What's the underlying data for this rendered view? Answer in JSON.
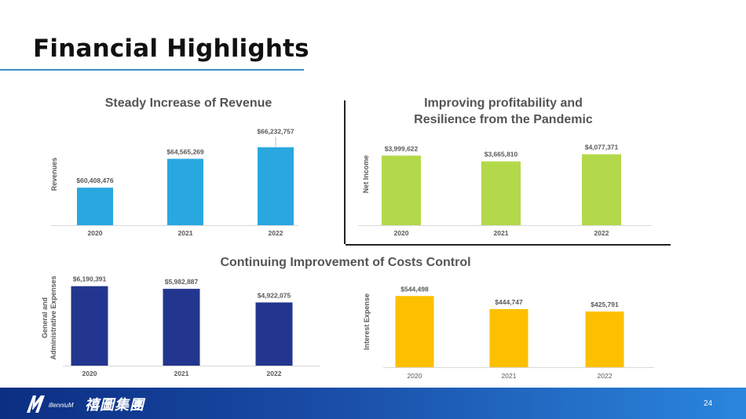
{
  "header": {
    "title": "Financial Highlights"
  },
  "chart_data": [
    {
      "id": "revenue",
      "type": "bar",
      "title": "Steady Increase of Revenue",
      "ylabel": "Revenues",
      "categories": [
        "2020",
        "2021",
        "2022"
      ],
      "values": [
        60408476,
        64565269,
        66232757
      ],
      "labels": [
        "$60,408,476",
        "$64,565,269",
        "$66,232,757"
      ],
      "ylim": [
        55000000,
        68000000
      ],
      "color": "#29a8e0"
    },
    {
      "id": "net-income",
      "type": "bar",
      "title": "Improving profitability and Resilience from the Pandemic",
      "ylabel": "Net Income",
      "categories": [
        "2020",
        "2021",
        "2022"
      ],
      "values": [
        3999622,
        3665810,
        4077371
      ],
      "labels": [
        "$3,999,622",
        "$3,665,810",
        "$4,077,371"
      ],
      "ylim": [
        0,
        4600000
      ],
      "color": "#b3d94a"
    },
    {
      "id": "ga-expenses",
      "type": "bar",
      "title": "Continuing Improvement of Costs Control",
      "ylabel": "General and Administrative Expenses",
      "categories": [
        "2020",
        "2021",
        "2022"
      ],
      "values": [
        6190391,
        5982887,
        4922075
      ],
      "labels": [
        "$6,190,391",
        "$5,982,887",
        "$4,922,075"
      ],
      "ylim": [
        0,
        6600000
      ],
      "color": "#23368f"
    },
    {
      "id": "interest-expense",
      "type": "bar",
      "title": "",
      "ylabel": "Interest Expense",
      "categories": [
        "2020",
        "2021",
        "2022"
      ],
      "values": [
        544498,
        444747,
        425791
      ],
      "labels": [
        "$544,498",
        "$444,747",
        "$425,791"
      ],
      "ylim": [
        0,
        600000
      ],
      "color": "#fcc000"
    }
  ],
  "footer": {
    "logo_text": "illenniuM",
    "company_cn": "禧圖集團",
    "page_number": "24"
  }
}
